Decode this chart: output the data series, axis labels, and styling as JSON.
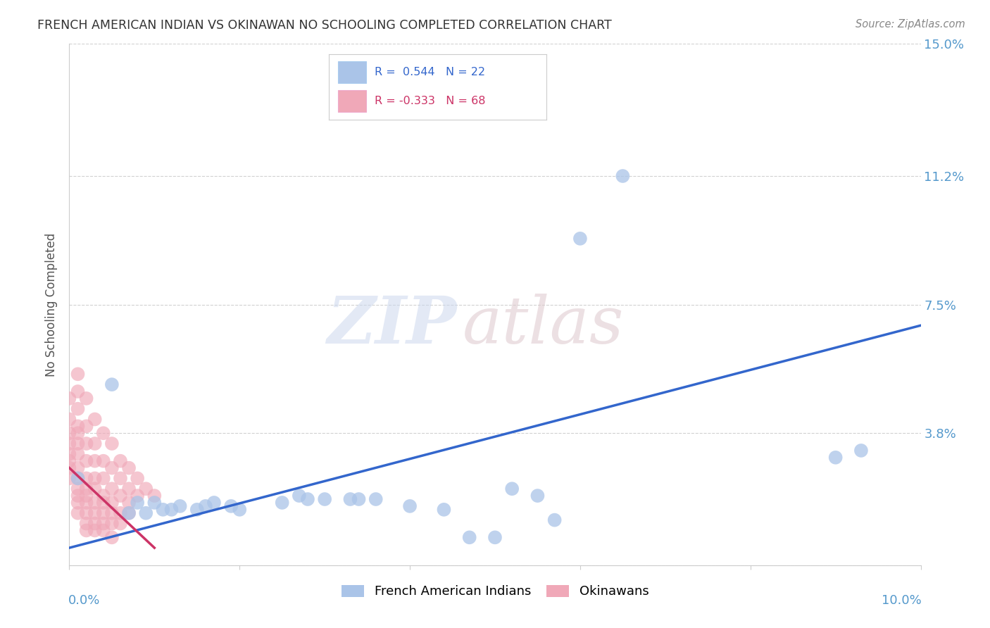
{
  "title": "FRENCH AMERICAN INDIAN VS OKINAWAN NO SCHOOLING COMPLETED CORRELATION CHART",
  "source": "Source: ZipAtlas.com",
  "ylabel": "No Schooling Completed",
  "xlim": [
    0.0,
    0.1
  ],
  "ylim": [
    0.0,
    0.15
  ],
  "yticks": [
    0.0,
    0.038,
    0.075,
    0.112,
    0.15
  ],
  "ytick_labels": [
    "",
    "3.8%",
    "7.5%",
    "11.2%",
    "15.0%"
  ],
  "grid_color": "#cccccc",
  "background_color": "#ffffff",
  "title_color": "#333333",
  "blue_color": "#aac4e8",
  "pink_color": "#f0a8b8",
  "blue_line_color": "#3366cc",
  "pink_line_color": "#cc3366",
  "tick_label_color": "#5599cc",
  "french_american_indians": [
    [
      0.001,
      0.025
    ],
    [
      0.005,
      0.052
    ],
    [
      0.007,
      0.015
    ],
    [
      0.008,
      0.018
    ],
    [
      0.009,
      0.015
    ],
    [
      0.01,
      0.018
    ],
    [
      0.011,
      0.016
    ],
    [
      0.012,
      0.016
    ],
    [
      0.013,
      0.017
    ],
    [
      0.015,
      0.016
    ],
    [
      0.016,
      0.017
    ],
    [
      0.017,
      0.018
    ],
    [
      0.019,
      0.017
    ],
    [
      0.02,
      0.016
    ],
    [
      0.025,
      0.018
    ],
    [
      0.027,
      0.02
    ],
    [
      0.028,
      0.019
    ],
    [
      0.03,
      0.019
    ],
    [
      0.033,
      0.019
    ],
    [
      0.034,
      0.019
    ],
    [
      0.036,
      0.019
    ],
    [
      0.04,
      0.017
    ],
    [
      0.044,
      0.016
    ],
    [
      0.047,
      0.008
    ],
    [
      0.05,
      0.008
    ],
    [
      0.052,
      0.022
    ],
    [
      0.055,
      0.02
    ],
    [
      0.057,
      0.013
    ],
    [
      0.06,
      0.094
    ],
    [
      0.065,
      0.112
    ],
    [
      0.09,
      0.031
    ],
    [
      0.093,
      0.033
    ]
  ],
  "okinawans": [
    [
      0.0,
      0.048
    ],
    [
      0.0,
      0.042
    ],
    [
      0.0,
      0.038
    ],
    [
      0.0,
      0.035
    ],
    [
      0.0,
      0.032
    ],
    [
      0.0,
      0.03
    ],
    [
      0.0,
      0.028
    ],
    [
      0.0,
      0.025
    ],
    [
      0.001,
      0.05
    ],
    [
      0.001,
      0.045
    ],
    [
      0.001,
      0.04
    ],
    [
      0.001,
      0.038
    ],
    [
      0.001,
      0.035
    ],
    [
      0.001,
      0.032
    ],
    [
      0.001,
      0.028
    ],
    [
      0.001,
      0.025
    ],
    [
      0.001,
      0.022
    ],
    [
      0.001,
      0.02
    ],
    [
      0.001,
      0.018
    ],
    [
      0.001,
      0.015
    ],
    [
      0.002,
      0.048
    ],
    [
      0.002,
      0.04
    ],
    [
      0.002,
      0.035
    ],
    [
      0.002,
      0.03
    ],
    [
      0.002,
      0.025
    ],
    [
      0.002,
      0.022
    ],
    [
      0.002,
      0.02
    ],
    [
      0.002,
      0.018
    ],
    [
      0.002,
      0.015
    ],
    [
      0.002,
      0.012
    ],
    [
      0.002,
      0.01
    ],
    [
      0.003,
      0.042
    ],
    [
      0.003,
      0.035
    ],
    [
      0.003,
      0.03
    ],
    [
      0.003,
      0.025
    ],
    [
      0.003,
      0.022
    ],
    [
      0.003,
      0.018
    ],
    [
      0.003,
      0.015
    ],
    [
      0.003,
      0.012
    ],
    [
      0.003,
      0.01
    ],
    [
      0.004,
      0.038
    ],
    [
      0.004,
      0.03
    ],
    [
      0.004,
      0.025
    ],
    [
      0.004,
      0.02
    ],
    [
      0.004,
      0.018
    ],
    [
      0.004,
      0.015
    ],
    [
      0.004,
      0.012
    ],
    [
      0.004,
      0.01
    ],
    [
      0.005,
      0.035
    ],
    [
      0.005,
      0.028
    ],
    [
      0.005,
      0.022
    ],
    [
      0.005,
      0.018
    ],
    [
      0.005,
      0.015
    ],
    [
      0.005,
      0.012
    ],
    [
      0.005,
      0.008
    ],
    [
      0.006,
      0.03
    ],
    [
      0.006,
      0.025
    ],
    [
      0.006,
      0.02
    ],
    [
      0.006,
      0.015
    ],
    [
      0.006,
      0.012
    ],
    [
      0.007,
      0.028
    ],
    [
      0.007,
      0.022
    ],
    [
      0.007,
      0.018
    ],
    [
      0.007,
      0.015
    ],
    [
      0.008,
      0.025
    ],
    [
      0.008,
      0.02
    ],
    [
      0.009,
      0.022
    ],
    [
      0.01,
      0.02
    ],
    [
      0.001,
      0.055
    ]
  ],
  "blue_trend_x": [
    0.0,
    0.1
  ],
  "blue_trend_y": [
    0.005,
    0.069
  ],
  "pink_trend_x": [
    0.0,
    0.01
  ],
  "pink_trend_y": [
    0.028,
    0.005
  ],
  "legend_labels": [
    "French American Indians",
    "Okinawans"
  ]
}
